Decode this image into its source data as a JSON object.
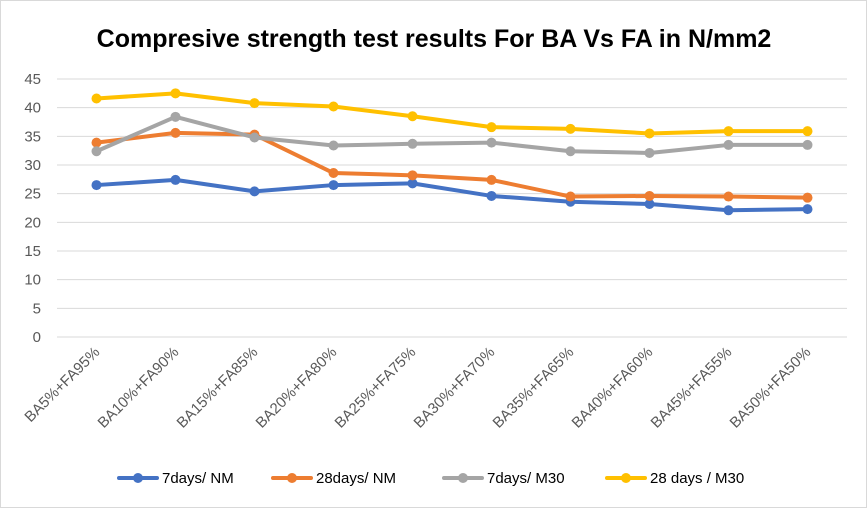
{
  "chart_data": {
    "type": "line",
    "title": "Compresive strength test results For BA Vs FA in N/mm2",
    "xlabel": "",
    "ylabel": "",
    "ylim": [
      0,
      45
    ],
    "yticks": [
      0,
      5,
      10,
      15,
      20,
      25,
      30,
      35,
      40,
      45
    ],
    "grid": true,
    "legend": "bottom",
    "categories": [
      "BA5%+FA95%",
      "BA10%+FA90%",
      "BA15%+FA85%",
      "BA20%+FA80%",
      "BA25%+FA75%",
      "BA30%+FA70%",
      "BA35%+FA65%",
      "BA40%+FA60%",
      "BA45%+FA55%",
      "BA50%+FA50%"
    ],
    "series": [
      {
        "name": "7days/ NM",
        "color": "#4472C4",
        "values": [
          26.5,
          27.4,
          25.4,
          26.5,
          26.8,
          24.6,
          23.6,
          23.2,
          22.1,
          22.3
        ]
      },
      {
        "name": "28days/ NM",
        "color": "#ED7D31",
        "values": [
          33.9,
          35.6,
          35.3,
          28.6,
          28.2,
          27.4,
          24.5,
          24.6,
          24.5,
          24.3
        ]
      },
      {
        "name": "7days/ M30",
        "color": "#A5A5A5",
        "values": [
          32.4,
          38.4,
          34.8,
          33.4,
          33.7,
          33.9,
          32.4,
          32.1,
          33.5,
          33.5
        ]
      },
      {
        "name": "28 days / M30",
        "color": "#FFC000",
        "values": [
          41.6,
          42.5,
          40.8,
          40.2,
          38.5,
          36.6,
          36.3,
          35.5,
          35.9,
          35.9
        ]
      }
    ]
  }
}
